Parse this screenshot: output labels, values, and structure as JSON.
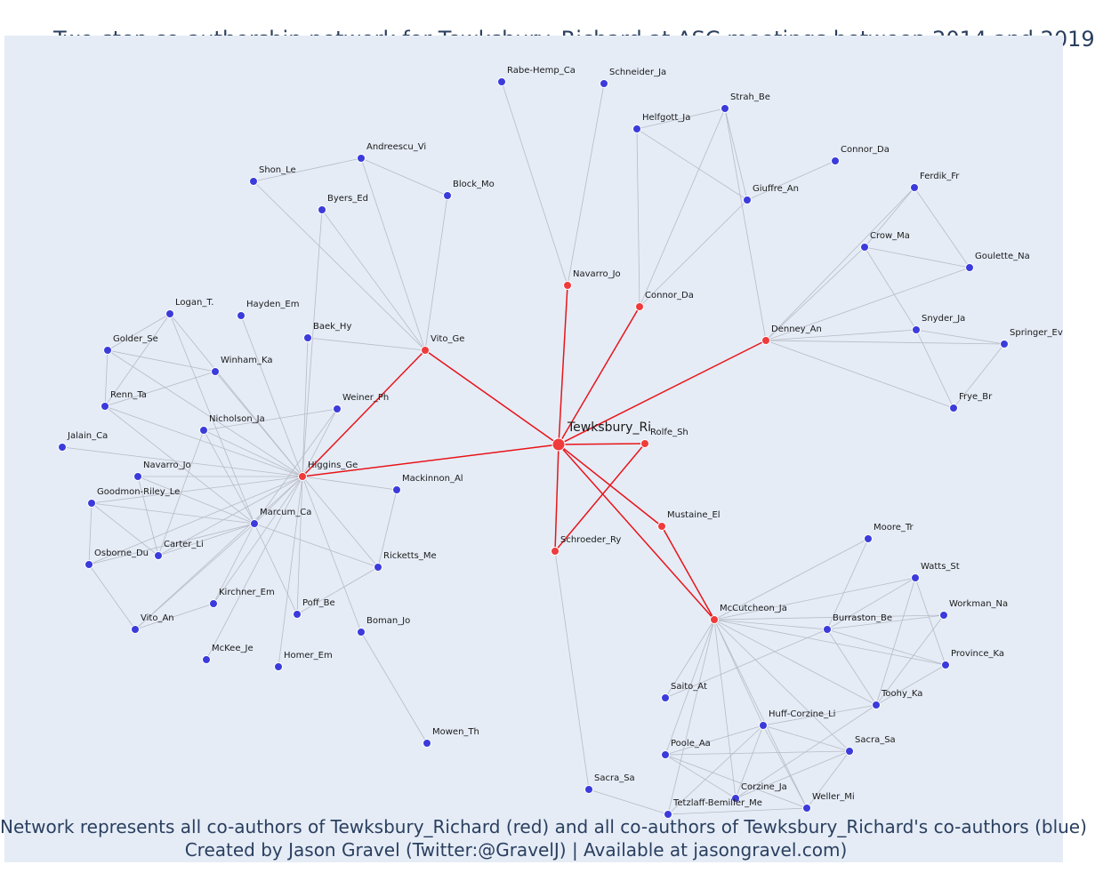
{
  "title": "Two-step co-authorship network for Tewksbury_Richard at ASC meetings between 2014 and 2019",
  "caption_line1": "Network represents all co-authors of Tewksbury_Richard (red) and all co-authors of Tewksbury_Richard's co-authors (blue)",
  "caption_line2": "Created by Jason Gravel (Twitter:@GravelJ) | Available at jasongravel.com)",
  "colors": {
    "background": "#e5ecf6",
    "red_node": "#ef3b3b",
    "blue_node": "#3b3bdc",
    "red_edge": "#e8141a",
    "grey_edge": "#b8bbc6",
    "text": "#2a3f5f"
  },
  "nodes": [
    {
      "id": "Tewksbury_Ri",
      "group": "center"
    },
    {
      "id": "Vito_Ge",
      "group": "red"
    },
    {
      "id": "Navarro_Jo",
      "group": "red",
      "label_key": "Navarro_Jo"
    },
    {
      "id": "Connor_Da",
      "group": "red"
    },
    {
      "id": "Denney_An",
      "group": "red"
    },
    {
      "id": "Rolfe_Sh",
      "group": "red"
    },
    {
      "id": "Higgins_Ge",
      "group": "red"
    },
    {
      "id": "Mustaine_El",
      "group": "red"
    },
    {
      "id": "Schroeder_Ry",
      "group": "red"
    },
    {
      "id": "McCutcheon_Ja",
      "group": "red"
    },
    {
      "id": "Rabe-Hemp_Ca",
      "group": "blue"
    },
    {
      "id": "Schneider_Ja",
      "group": "blue"
    },
    {
      "id": "Strah_Be",
      "group": "blue"
    },
    {
      "id": "Helfgott_Ja",
      "group": "blue"
    },
    {
      "id": "Giuffre_An",
      "group": "blue"
    },
    {
      "id": "Connor_Da#2",
      "group": "blue",
      "label": "Connor_Da"
    },
    {
      "id": "Ferdik_Fr",
      "group": "blue"
    },
    {
      "id": "Crow_Ma",
      "group": "blue"
    },
    {
      "id": "Goulette_Na",
      "group": "blue"
    },
    {
      "id": "Snyder_Ja",
      "group": "blue"
    },
    {
      "id": "Springer_Ev",
      "group": "blue"
    },
    {
      "id": "Frye_Br",
      "group": "blue"
    },
    {
      "id": "Andreescu_Vi",
      "group": "blue"
    },
    {
      "id": "Shon_Le",
      "group": "blue"
    },
    {
      "id": "Block_Mo",
      "group": "blue"
    },
    {
      "id": "Byers_Ed",
      "group": "blue"
    },
    {
      "id": "Baek_Hy",
      "group": "blue"
    },
    {
      "id": "Logan_T.",
      "group": "blue"
    },
    {
      "id": "Hayden_Em",
      "group": "blue"
    },
    {
      "id": "Golder_Se",
      "group": "blue"
    },
    {
      "id": "Winham_Ka",
      "group": "blue"
    },
    {
      "id": "Renn_Ta",
      "group": "blue"
    },
    {
      "id": "Nicholson_Ja",
      "group": "blue"
    },
    {
      "id": "Weiner_Ph",
      "group": "blue"
    },
    {
      "id": "Jalain_Ca",
      "group": "blue"
    },
    {
      "id": "Navarro_Jo#2",
      "group": "blue",
      "label": "Navarro_Jo"
    },
    {
      "id": "Goodmon-Riley_Le",
      "group": "blue"
    },
    {
      "id": "Marcum_Ca",
      "group": "blue"
    },
    {
      "id": "Mackinnon_Al",
      "group": "blue"
    },
    {
      "id": "Osborne_Du",
      "group": "blue"
    },
    {
      "id": "Carter_Li",
      "group": "blue"
    },
    {
      "id": "Ricketts_Me",
      "group": "blue"
    },
    {
      "id": "Kirchner_Em",
      "group": "blue"
    },
    {
      "id": "Poff_Be",
      "group": "blue"
    },
    {
      "id": "Vito_An",
      "group": "blue"
    },
    {
      "id": "Boman_Jo",
      "group": "blue"
    },
    {
      "id": "McKee_Je",
      "group": "blue"
    },
    {
      "id": "Homer_Em",
      "group": "blue"
    },
    {
      "id": "Mowen_Th",
      "group": "blue"
    },
    {
      "id": "Moore_Tr",
      "group": "blue"
    },
    {
      "id": "Watts_St",
      "group": "blue"
    },
    {
      "id": "Workman_Na",
      "group": "blue"
    },
    {
      "id": "Burraston_Be",
      "group": "blue"
    },
    {
      "id": "Province_Ka",
      "group": "blue"
    },
    {
      "id": "Saito_At",
      "group": "blue"
    },
    {
      "id": "Toohy_Ka",
      "group": "blue"
    },
    {
      "id": "Huff-Corzine_Li",
      "group": "blue"
    },
    {
      "id": "Poole_Aa",
      "group": "blue"
    },
    {
      "id": "Sacra_Sa",
      "group": "blue"
    },
    {
      "id": "Sacra_Sa#2",
      "group": "blue",
      "label": "Sacra_Sa"
    },
    {
      "id": "Corzine_Ja",
      "group": "blue"
    },
    {
      "id": "Weller_Mi",
      "group": "blue"
    },
    {
      "id": "Tetzlaff-Bemiller_Me",
      "group": "blue"
    }
  ],
  "edges": [
    [
      "Tewksbury_Ri",
      "Vito_Ge"
    ],
    [
      "Tewksbury_Ri",
      "Navarro_Jo"
    ],
    [
      "Tewksbury_Ri",
      "Connor_Da"
    ],
    [
      "Tewksbury_Ri",
      "Denney_An"
    ],
    [
      "Tewksbury_Ri",
      "Rolfe_Sh"
    ],
    [
      "Tewksbury_Ri",
      "Higgins_Ge"
    ],
    [
      "Tewksbury_Ri",
      "Mustaine_El"
    ],
    [
      "Tewksbury_Ri",
      "Schroeder_Ry"
    ],
    [
      "Tewksbury_Ri",
      "McCutcheon_Ja"
    ],
    [
      "Rolfe_Sh",
      "Schroeder_Ry"
    ],
    [
      "Mustaine_El",
      "McCutcheon_Ja"
    ],
    [
      "Vito_Ge",
      "Higgins_Ge"
    ],
    [
      "Navarro_Jo",
      "Rabe-Hemp_Ca"
    ],
    [
      "Navarro_Jo",
      "Schneider_Ja"
    ],
    [
      "Connor_Da",
      "Helfgott_Ja"
    ],
    [
      "Connor_Da",
      "Strah_Be"
    ],
    [
      "Connor_Da",
      "Giuffre_An"
    ],
    [
      "Helfgott_Ja",
      "Strah_Be"
    ],
    [
      "Helfgott_Ja",
      "Giuffre_An"
    ],
    [
      "Strah_Be",
      "Giuffre_An"
    ],
    [
      "Giuffre_An",
      "Connor_Da#2"
    ],
    [
      "Denney_An",
      "Strah_Be"
    ],
    [
      "Denney_An",
      "Ferdik_Fr"
    ],
    [
      "Denney_An",
      "Crow_Ma"
    ],
    [
      "Denney_An",
      "Goulette_Na"
    ],
    [
      "Denney_An",
      "Snyder_Ja"
    ],
    [
      "Denney_An",
      "Springer_Ev"
    ],
    [
      "Denney_An",
      "Frye_Br"
    ],
    [
      "Ferdik_Fr",
      "Crow_Ma"
    ],
    [
      "Ferdik_Fr",
      "Goulette_Na"
    ],
    [
      "Crow_Ma",
      "Goulette_Na"
    ],
    [
      "Crow_Ma",
      "Snyder_Ja"
    ],
    [
      "Snyder_Ja",
      "Springer_Ev"
    ],
    [
      "Snyder_Ja",
      "Frye_Br"
    ],
    [
      "Springer_Ev",
      "Frye_Br"
    ],
    [
      "Vito_Ge",
      "Andreescu_Vi"
    ],
    [
      "Vito_Ge",
      "Shon_Le"
    ],
    [
      "Vito_Ge",
      "Block_Mo"
    ],
    [
      "Vito_Ge",
      "Byers_Ed"
    ],
    [
      "Vito_Ge",
      "Baek_Hy"
    ],
    [
      "Andreescu_Vi",
      "Shon_Le"
    ],
    [
      "Andreescu_Vi",
      "Block_Mo"
    ],
    [
      "Byers_Ed",
      "Higgins_Ge"
    ],
    [
      "Higgins_Ge",
      "Logan_T."
    ],
    [
      "Higgins_Ge",
      "Hayden_Em"
    ],
    [
      "Higgins_Ge",
      "Winham_Ka"
    ],
    [
      "Higgins_Ge",
      "Golder_Se"
    ],
    [
      "Higgins_Ge",
      "Renn_Ta"
    ],
    [
      "Higgins_Ge",
      "Nicholson_Ja"
    ],
    [
      "Higgins_Ge",
      "Weiner_Ph"
    ],
    [
      "Higgins_Ge",
      "Jalain_Ca"
    ],
    [
      "Higgins_Ge",
      "Navarro_Jo#2"
    ],
    [
      "Higgins_Ge",
      "Goodmon-Riley_Le"
    ],
    [
      "Higgins_Ge",
      "Marcum_Ca"
    ],
    [
      "Higgins_Ge",
      "Mackinnon_Al"
    ],
    [
      "Higgins_Ge",
      "Osborne_Du"
    ],
    [
      "Higgins_Ge",
      "Carter_Li"
    ],
    [
      "Higgins_Ge",
      "Ricketts_Me"
    ],
    [
      "Higgins_Ge",
      "Kirchner_Em"
    ],
    [
      "Higgins_Ge",
      "Poff_Be"
    ],
    [
      "Higgins_Ge",
      "Vito_An"
    ],
    [
      "Higgins_Ge",
      "Boman_Jo"
    ],
    [
      "Higgins_Ge",
      "McKee_Je"
    ],
    [
      "Higgins_Ge",
      "Homer_Em"
    ],
    [
      "Higgins_Ge",
      "Baek_Hy"
    ],
    [
      "Logan_T.",
      "Golder_Se"
    ],
    [
      "Logan_T.",
      "Renn_Ta"
    ],
    [
      "Logan_T.",
      "Marcum_Ca"
    ],
    [
      "Golder_Se",
      "Winham_Ka"
    ],
    [
      "Golder_Se",
      "Renn_Ta"
    ],
    [
      "Winham_Ka",
      "Renn_Ta"
    ],
    [
      "Renn_Ta",
      "Marcum_Ca"
    ],
    [
      "Nicholson_Ja",
      "Weiner_Ph"
    ],
    [
      "Nicholson_Ja",
      "Marcum_Ca"
    ],
    [
      "Nicholson_Ja",
      "Carter_Li"
    ],
    [
      "Navarro_Jo#2",
      "Marcum_Ca"
    ],
    [
      "Navarro_Jo#2",
      "Carter_Li"
    ],
    [
      "Goodmon-Riley_Le",
      "Marcum_Ca"
    ],
    [
      "Goodmon-Riley_Le",
      "Osborne_Du"
    ],
    [
      "Goodmon-Riley_Le",
      "Carter_Li"
    ],
    [
      "Marcum_Ca",
      "Weiner_Ph"
    ],
    [
      "Marcum_Ca",
      "Ricketts_Me"
    ],
    [
      "Marcum_Ca",
      "Carter_Li"
    ],
    [
      "Marcum_Ca",
      "Kirchner_Em"
    ],
    [
      "Marcum_Ca",
      "Vito_An"
    ],
    [
      "Marcum_Ca",
      "Poff_Be"
    ],
    [
      "Marcum_Ca",
      "Osborne_Du"
    ],
    [
      "Osborne_Du",
      "Vito_An"
    ],
    [
      "Kirchner_Em",
      "Vito_An"
    ],
    [
      "Mackinnon_Al",
      "Ricketts_Me"
    ],
    [
      "Ricketts_Me",
      "Poff_Be"
    ],
    [
      "Boman_Jo",
      "Mowen_Th"
    ],
    [
      "Schroeder_Ry",
      "Sacra_Sa"
    ],
    [
      "McCutcheon_Ja",
      "Moore_Tr"
    ],
    [
      "McCutcheon_Ja",
      "Watts_St"
    ],
    [
      "McCutcheon_Ja",
      "Workman_Na"
    ],
    [
      "McCutcheon_Ja",
      "Burraston_Be"
    ],
    [
      "McCutcheon_Ja",
      "Province_Ka"
    ],
    [
      "McCutcheon_Ja",
      "Saito_At"
    ],
    [
      "McCutcheon_Ja",
      "Toohy_Ka"
    ],
    [
      "McCutcheon_Ja",
      "Huff-Corzine_Li"
    ],
    [
      "McCutcheon_Ja",
      "Poole_Aa"
    ],
    [
      "McCutcheon_Ja",
      "Sacra_Sa#2"
    ],
    [
      "McCutcheon_Ja",
      "Corzine_Ja"
    ],
    [
      "McCutcheon_Ja",
      "Weller_Mi"
    ],
    [
      "McCutcheon_Ja",
      "Tetzlaff-Bemiller_Me"
    ],
    [
      "Moore_Tr",
      "Burraston_Be"
    ],
    [
      "Watts_St",
      "Burraston_Be"
    ],
    [
      "Watts_St",
      "Province_Ka"
    ],
    [
      "Watts_St",
      "Toohy_Ka"
    ],
    [
      "Workman_Na",
      "Burraston_Be"
    ],
    [
      "Workman_Na",
      "Toohy_Ka"
    ],
    [
      "Burraston_Be",
      "Province_Ka"
    ],
    [
      "Burraston_Be",
      "Toohy_Ka"
    ],
    [
      "Province_Ka",
      "Toohy_Ka"
    ],
    [
      "Huff-Corzine_Li",
      "Toohy_Ka"
    ],
    [
      "Huff-Corzine_Li",
      "Poole_Aa"
    ],
    [
      "Huff-Corzine_Li",
      "Sacra_Sa#2"
    ],
    [
      "Huff-Corzine_Li",
      "Corzine_Ja"
    ],
    [
      "Huff-Corzine_Li",
      "Weller_Mi"
    ],
    [
      "Huff-Corzine_Li",
      "Tetzlaff-Bemiller_Me"
    ],
    [
      "Poole_Aa",
      "Sacra_Sa#2"
    ],
    [
      "Poole_Aa",
      "Corzine_Ja"
    ],
    [
      "Poole_Aa",
      "Weller_Mi"
    ],
    [
      "Corzine_Ja",
      "Sacra_Sa#2"
    ],
    [
      "Corzine_Ja",
      "Toohy_Ka"
    ],
    [
      "Weller_Mi",
      "Sacra_Sa#2"
    ],
    [
      "Sacra_Sa",
      "Tetzlaff-Bemiller_Me"
    ],
    [
      "Tetzlaff-Bemiller_Me",
      "Weller_Mi"
    ],
    [
      "Saito_At",
      "Burraston_Be"
    ]
  ]
}
